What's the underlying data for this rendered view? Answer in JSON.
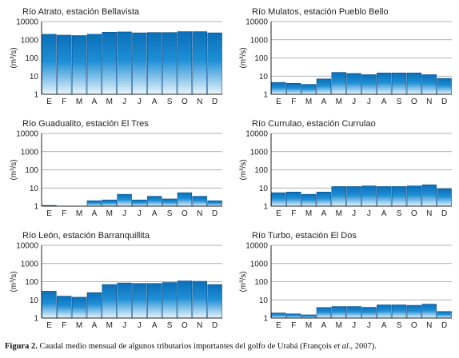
{
  "chart_data": [
    {
      "type": "bar",
      "title": "Río Atrato, estación Bellavista",
      "ylabel": "(m³/s)",
      "yscale": "log",
      "ylim": [
        1,
        10000
      ],
      "yticks": [
        "1",
        "10",
        "100",
        "1000",
        "10000"
      ],
      "categories": [
        "E",
        "F",
        "M",
        "A",
        "M",
        "J",
        "J",
        "A",
        "S",
        "O",
        "N",
        "D"
      ],
      "values": [
        2000,
        1800,
        1700,
        2000,
        2600,
        2700,
        2400,
        2500,
        2500,
        2800,
        2800,
        2400
      ],
      "grid": true
    },
    {
      "type": "bar",
      "title": "Río Mulatos, estación Pueblo Bello",
      "ylabel": "(m³/s)",
      "yscale": "log",
      "ylim": [
        1,
        10000
      ],
      "yticks": [
        "1",
        "10",
        "100",
        "1000",
        "10000"
      ],
      "categories": [
        "E",
        "F",
        "M",
        "A",
        "M",
        "J",
        "J",
        "A",
        "S",
        "O",
        "N",
        "D"
      ],
      "values": [
        4.5,
        4,
        3.5,
        7,
        16,
        14,
        12,
        15,
        15,
        15,
        12,
        7.5
      ],
      "grid": true
    },
    {
      "type": "bar",
      "title": "Río Guadualito, estación El Tres",
      "ylabel": "(m³/s)",
      "yscale": "log",
      "ylim": [
        1,
        10000
      ],
      "yticks": [
        "1",
        "10",
        "100",
        "1000",
        "10000"
      ],
      "categories": [
        "E",
        "F",
        "M",
        "A",
        "M",
        "J",
        "J",
        "A",
        "S",
        "O",
        "N",
        "D"
      ],
      "values": [
        1.1,
        null,
        null,
        2,
        2.2,
        4.5,
        2.2,
        3.5,
        2.5,
        5.5,
        3.5,
        2
      ],
      "grid": true
    },
    {
      "type": "bar",
      "title": "Río Currulao, estación Currulao",
      "ylabel": "(m³/s)",
      "yscale": "log",
      "ylim": [
        1,
        10000
      ],
      "yticks": [
        "1",
        "10",
        "100",
        "1000",
        "10000"
      ],
      "categories": [
        "E",
        "F",
        "M",
        "A",
        "M",
        "J",
        "J",
        "A",
        "S",
        "O",
        "N",
        "D"
      ],
      "values": [
        5.5,
        6,
        4.5,
        6,
        12,
        12,
        13,
        12,
        12,
        13,
        15,
        9
      ],
      "grid": true
    },
    {
      "type": "bar",
      "title": "Río León, estación Barranquillita",
      "ylabel": "(m³/s)",
      "yscale": "log",
      "ylim": [
        1,
        10000
      ],
      "yticks": [
        "1",
        "10",
        "100",
        "1000",
        "10000"
      ],
      "categories": [
        "E",
        "F",
        "M",
        "A",
        "M",
        "J",
        "J",
        "A",
        "S",
        "O",
        "N",
        "D"
      ],
      "values": [
        30,
        16,
        14,
        25,
        70,
        85,
        80,
        80,
        90,
        110,
        105,
        70
      ],
      "grid": true
    },
    {
      "type": "bar",
      "title": "Río Turbo, estación El Dos",
      "ylabel": "(m³/s)",
      "yscale": "log",
      "ylim": [
        1,
        10000
      ],
      "yticks": [
        "1",
        "10",
        "100",
        "1000",
        "10000"
      ],
      "categories": [
        "E",
        "F",
        "M",
        "A",
        "M",
        "J",
        "J",
        "A",
        "S",
        "O",
        "N",
        "D"
      ],
      "values": [
        1.9,
        1.7,
        1.5,
        3.8,
        4.3,
        4.3,
        3.9,
        5.3,
        5.3,
        5,
        5.8,
        2.3
      ],
      "grid": true
    }
  ],
  "caption": {
    "label": "Figura 2.",
    "text_before": " Caudal medio mensual de algunos tributarios importantes del golfo de Urabá (François ",
    "italic": "et al",
    "text_after": "., 2007)."
  },
  "colors": {
    "bar_top": "#0a6fb8",
    "bar_mid": "#1e8fd6",
    "bar_bottom": "#e9f5fc",
    "bar_edge": "#0d4f8a",
    "grid": "#999999",
    "axis": "#222222"
  }
}
